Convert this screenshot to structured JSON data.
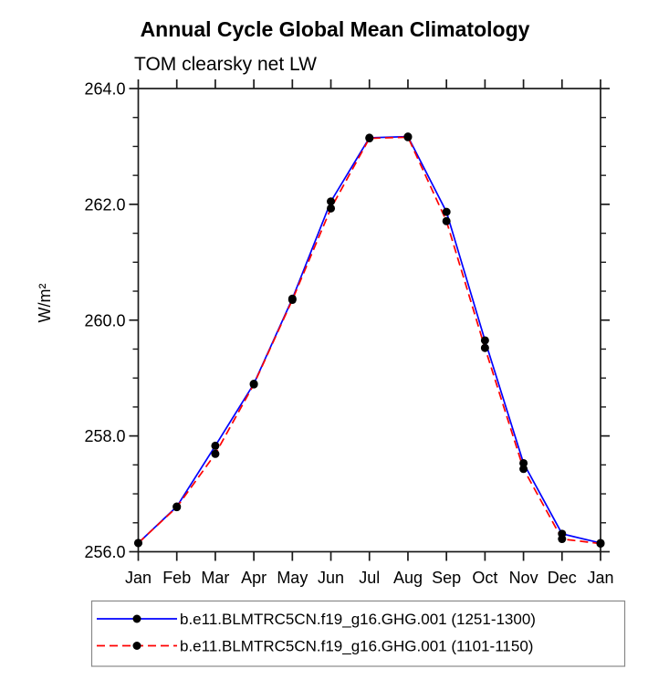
{
  "chart_data": {
    "type": "line",
    "title": "Annual Cycle Global Mean Climatology",
    "subtitle": "TOM clearsky net LW",
    "ylabel": "W/m²",
    "categories": [
      "Jan",
      "Feb",
      "Mar",
      "Apr",
      "May",
      "Jun",
      "Jul",
      "Aug",
      "Sep",
      "Oct",
      "Nov",
      "Dec",
      "Jan"
    ],
    "ylim": [
      256.0,
      264.0
    ],
    "yticks_major": [
      256.0,
      258.0,
      260.0,
      262.0,
      264.0
    ],
    "ytick_minor_step": 0.5,
    "ytick_label_format": "one_decimal",
    "grid": false,
    "legend_position": "bottom",
    "axis_color": "#1a1a1a",
    "marker_color": "#000000",
    "legend_border_color": "#888888",
    "series": [
      {
        "name": "b.e11.BLMTRC5CN.f19_g16.GHG.001 (1251-1300)",
        "color": "#0000ff",
        "line_style": "solid",
        "marker": "circle",
        "values": [
          256.15,
          256.78,
          257.83,
          258.9,
          260.37,
          262.05,
          263.15,
          263.17,
          261.87,
          259.65,
          257.53,
          256.31,
          256.15
        ]
      },
      {
        "name": "b.e11.BLMTRC5CN.f19_g16.GHG.001 (1101-1150)",
        "color": "#ff0000",
        "line_style": "dashed",
        "marker": "circle",
        "values": [
          256.15,
          256.77,
          257.69,
          258.89,
          260.35,
          261.93,
          263.14,
          263.16,
          261.71,
          259.52,
          257.43,
          256.22,
          256.14
        ]
      }
    ]
  }
}
